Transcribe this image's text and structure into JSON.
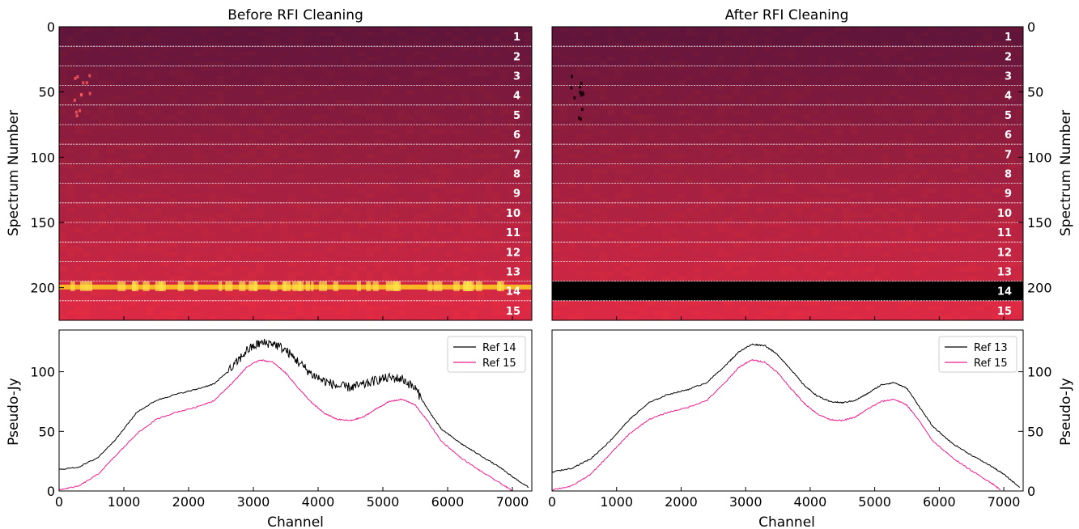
{
  "panels": {
    "before_title": "Before RFI Cleaning",
    "after_title": "After RFI Cleaning"
  },
  "labels": {
    "spectrum_number": "Spectrum Number",
    "pseudo_jy": "Pseudo-Jy",
    "channel": "Channel"
  },
  "colors": {
    "ref_black": "#000000",
    "ref_magenta": "#ee1f90",
    "separator": "#ffffff",
    "flagged": "#000000"
  },
  "chart_data": [
    {
      "id": "waterfall-before",
      "type": "heatmap",
      "title": "Before RFI Cleaning",
      "xlim": [
        0,
        7300
      ],
      "ylim": [
        0,
        225
      ],
      "y_inverted": true,
      "ylabel": "Spectrum Number",
      "yticks": [
        0,
        50,
        100,
        150,
        200
      ],
      "xticks": [
        0,
        1000,
        2000,
        3000,
        4000,
        5000,
        6000,
        7000
      ],
      "block_labels": [
        "1",
        "2",
        "3",
        "4",
        "5",
        "6",
        "7",
        "8",
        "9",
        "10",
        "11",
        "12",
        "13",
        "14",
        "15"
      ],
      "block_boundaries": [
        0,
        15,
        30,
        45,
        60,
        75,
        90,
        105,
        120,
        135,
        150,
        165,
        180,
        195,
        210,
        225
      ],
      "colormap": "hot-magenta",
      "rfi_features": [
        "bright horizontal RFI line near spectrum 200 in block 14",
        "spots near channel 200-400 in blocks 3-5"
      ]
    },
    {
      "id": "waterfall-after",
      "type": "heatmap",
      "title": "After RFI Cleaning",
      "xlim": [
        0,
        7300
      ],
      "ylim": [
        0,
        225
      ],
      "y_inverted": true,
      "ylabel": "Spectrum Number",
      "yticks": [
        0,
        50,
        100,
        150,
        200
      ],
      "xticks": [
        0,
        1000,
        2000,
        3000,
        4000,
        5000,
        6000,
        7000
      ],
      "block_labels": [
        "1",
        "2",
        "3",
        "4",
        "5",
        "6",
        "7",
        "8",
        "9",
        "10",
        "11",
        "12",
        "13",
        "14",
        "15"
      ],
      "block_boundaries": [
        0,
        15,
        30,
        45,
        60,
        75,
        90,
        105,
        120,
        135,
        150,
        165,
        180,
        195,
        210,
        225
      ],
      "flagged_block": "14",
      "colormap": "hot-magenta"
    },
    {
      "id": "spectrum-before",
      "type": "line",
      "xlabel": "Channel",
      "ylabel": "Pseudo-Jy",
      "xlim": [
        0,
        7300
      ],
      "ylim": [
        0,
        135
      ],
      "xticks": [
        0,
        1000,
        2000,
        3000,
        4000,
        5000,
        6000,
        7000
      ],
      "yticks": [
        0,
        50,
        100
      ],
      "legend": "top-right",
      "series": [
        {
          "name": "Ref 14",
          "color": "#000000",
          "x": [
            0,
            300,
            600,
            900,
            1200,
            1500,
            1800,
            2100,
            2400,
            2700,
            2900,
            3100,
            3300,
            3500,
            3700,
            3900,
            4100,
            4300,
            4500,
            4700,
            4900,
            5100,
            5300,
            5500,
            5700,
            5900,
            6200,
            6500,
            6800,
            7000,
            7250
          ],
          "y": [
            18,
            20,
            28,
            45,
            66,
            76,
            81,
            85,
            90,
            105,
            118,
            124,
            124,
            118,
            108,
            98,
            92,
            88,
            87,
            89,
            93,
            95,
            94,
            86,
            68,
            52,
            40,
            30,
            20,
            12,
            3
          ]
        },
        {
          "name": "Ref 15",
          "color": "#ee1f90",
          "x": [
            0,
            300,
            600,
            900,
            1200,
            1500,
            1800,
            2100,
            2400,
            2700,
            2900,
            3100,
            3300,
            3500,
            3700,
            3900,
            4100,
            4300,
            4500,
            4700,
            4900,
            5100,
            5300,
            5500,
            5700,
            5900,
            6200,
            6500,
            6800,
            7000
          ],
          "y": [
            1,
            4,
            14,
            31,
            48,
            60,
            66,
            70,
            76,
            92,
            104,
            110,
            108,
            99,
            86,
            74,
            65,
            60,
            59,
            62,
            69,
            75,
            77,
            72,
            58,
            42,
            28,
            17,
            7,
            0
          ]
        }
      ]
    },
    {
      "id": "spectrum-after",
      "type": "line",
      "xlabel": "Channel",
      "ylabel": "Pseudo-Jy",
      "xlim": [
        0,
        7300
      ],
      "ylim": [
        0,
        135
      ],
      "xticks": [
        0,
        1000,
        2000,
        3000,
        4000,
        5000,
        6000,
        7000
      ],
      "yticks": [
        0,
        50,
        100
      ],
      "legend": "top-right",
      "series": [
        {
          "name": "Ref 13",
          "color": "#000000",
          "x": [
            0,
            300,
            600,
            900,
            1200,
            1500,
            1800,
            2100,
            2400,
            2700,
            2900,
            3100,
            3300,
            3500,
            3700,
            3900,
            4100,
            4300,
            4500,
            4700,
            4900,
            5100,
            5300,
            5500,
            5700,
            5900,
            6200,
            6500,
            6800,
            7000,
            7250
          ],
          "y": [
            16,
            19,
            27,
            42,
            60,
            74,
            81,
            85,
            91,
            106,
            117,
            123,
            122,
            114,
            102,
            89,
            80,
            75,
            74,
            76,
            82,
            89,
            91,
            86,
            70,
            54,
            40,
            30,
            21,
            14,
            3
          ]
        },
        {
          "name": "Ref 15",
          "color": "#ee1f90",
          "x": [
            0,
            300,
            600,
            900,
            1200,
            1500,
            1800,
            2100,
            2400,
            2700,
            2900,
            3100,
            3300,
            3500,
            3700,
            3900,
            4100,
            4300,
            4500,
            4700,
            4900,
            5100,
            5300,
            5500,
            5700,
            5900,
            6200,
            6500,
            6800,
            6950
          ],
          "y": [
            1,
            4,
            14,
            31,
            48,
            60,
            66,
            70,
            76,
            92,
            104,
            110,
            108,
            99,
            86,
            74,
            65,
            60,
            59,
            62,
            69,
            75,
            77,
            72,
            58,
            42,
            28,
            17,
            7,
            1
          ]
        }
      ]
    }
  ]
}
